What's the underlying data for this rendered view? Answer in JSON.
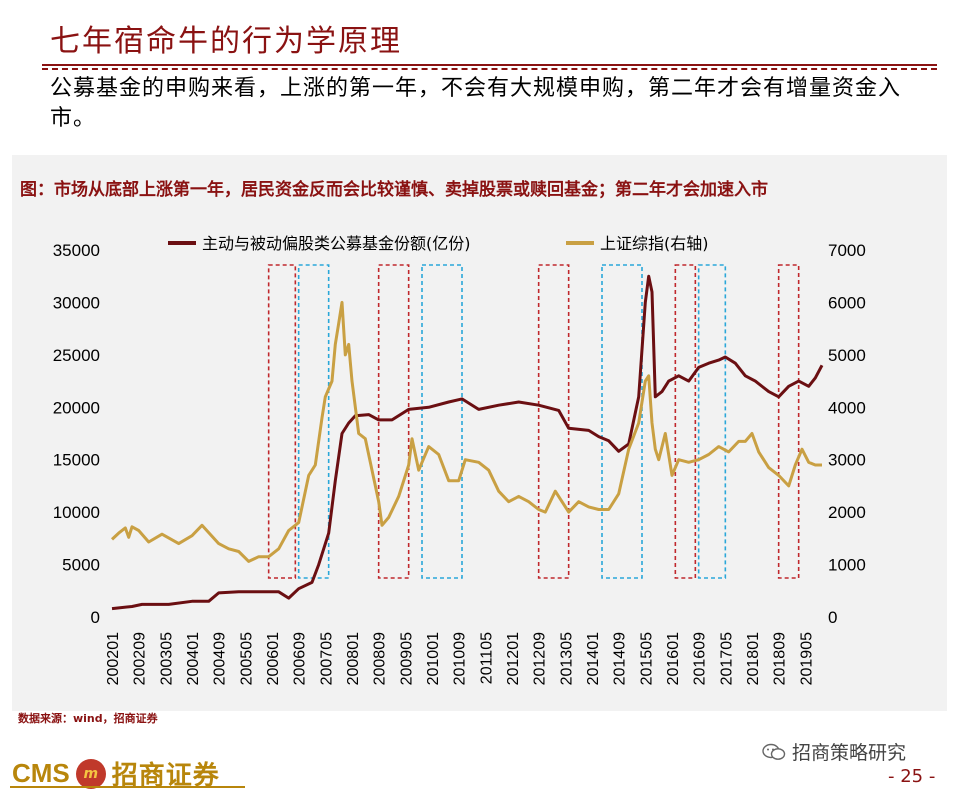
{
  "header": {
    "title": "七年宿命牛的行为学原理",
    "subtitle": "公募基金的申购来看，上涨的第一年，不会有大规模申购，第二年才会有增量资金入市。"
  },
  "chart_data": {
    "type": "line",
    "title": "图：市场从底部上涨第一年，居民资金反而会比较谨慎、卖掉股票或赎回基金；第二年才会加速入市",
    "legend_placement": "top",
    "grid": false,
    "x_tick_labels": [
      "200201",
      "200209",
      "200305",
      "200401",
      "200409",
      "200505",
      "200601",
      "200609",
      "200705",
      "200801",
      "200809",
      "200905",
      "201001",
      "201009",
      "201105",
      "201201",
      "201209",
      "201305",
      "201401",
      "201409",
      "201505",
      "201601",
      "201609",
      "201705",
      "201801",
      "201809",
      "201905"
    ],
    "x_range": [
      "2002-01",
      "2019-10"
    ],
    "y_left": {
      "ticks": [
        "0",
        "5000",
        "10000",
        "15000",
        "20000",
        "25000",
        "30000",
        "35000"
      ],
      "ylim": [
        0,
        35000
      ]
    },
    "y_right": {
      "ticks": [
        "0",
        "1000",
        "2000",
        "3000",
        "4000",
        "5000",
        "6000",
        "7000"
      ],
      "ylim": [
        0,
        7000
      ]
    },
    "series": [
      {
        "name": "主动与被动偏股类公募基金份额(亿份)",
        "axis": "left",
        "color": "#6b0f12",
        "points": [
          [
            "2002-01",
            800
          ],
          [
            "2002-07",
            1000
          ],
          [
            "2002-10",
            1200
          ],
          [
            "2003-06",
            1200
          ],
          [
            "2004-01",
            1500
          ],
          [
            "2004-06",
            1500
          ],
          [
            "2004-09",
            2300
          ],
          [
            "2005-03",
            2400
          ],
          [
            "2005-09",
            2400
          ],
          [
            "2006-03",
            2400
          ],
          [
            "2006-06",
            1800
          ],
          [
            "2006-09",
            2700
          ],
          [
            "2007-01",
            3300
          ],
          [
            "2007-03",
            5000
          ],
          [
            "2007-06",
            8000
          ],
          [
            "2007-08",
            13000
          ],
          [
            "2007-10",
            17500
          ],
          [
            "2007-12",
            18500
          ],
          [
            "2008-02",
            19200
          ],
          [
            "2008-06",
            19300
          ],
          [
            "2008-09",
            18800
          ],
          [
            "2009-01",
            18800
          ],
          [
            "2009-06",
            19800
          ],
          [
            "2009-12",
            20000
          ],
          [
            "2010-06",
            20500
          ],
          [
            "2010-10",
            20800
          ],
          [
            "2011-03",
            19800
          ],
          [
            "2011-09",
            20200
          ],
          [
            "2012-03",
            20500
          ],
          [
            "2012-09",
            20200
          ],
          [
            "2013-03",
            19700
          ],
          [
            "2013-06",
            18000
          ],
          [
            "2013-12",
            17800
          ],
          [
            "2014-03",
            17200
          ],
          [
            "2014-06",
            16800
          ],
          [
            "2014-09",
            15800
          ],
          [
            "2014-12",
            16500
          ],
          [
            "2015-03",
            21000
          ],
          [
            "2015-05",
            30000
          ],
          [
            "2015-06",
            32500
          ],
          [
            "2015-07",
            31000
          ],
          [
            "2015-08",
            21000
          ],
          [
            "2015-10",
            21500
          ],
          [
            "2015-12",
            22500
          ],
          [
            "2016-03",
            23000
          ],
          [
            "2016-06",
            22500
          ],
          [
            "2016-09",
            23800
          ],
          [
            "2016-12",
            24200
          ],
          [
            "2017-03",
            24500
          ],
          [
            "2017-05",
            24800
          ],
          [
            "2017-08",
            24200
          ],
          [
            "2017-11",
            23000
          ],
          [
            "2018-02",
            22500
          ],
          [
            "2018-06",
            21500
          ],
          [
            "2018-09",
            21000
          ],
          [
            "2018-12",
            22000
          ],
          [
            "2019-03",
            22500
          ],
          [
            "2019-06",
            22000
          ],
          [
            "2019-08",
            22800
          ],
          [
            "2019-10",
            24000
          ]
        ]
      },
      {
        "name": "上证综指(右轴)",
        "axis": "right",
        "color": "#c9a043",
        "points": [
          [
            "2002-01",
            1480
          ],
          [
            "2002-03",
            1600
          ],
          [
            "2002-05",
            1700
          ],
          [
            "2002-06",
            1520
          ],
          [
            "2002-07",
            1720
          ],
          [
            "2002-09",
            1650
          ],
          [
            "2002-12",
            1430
          ],
          [
            "2003-04",
            1580
          ],
          [
            "2003-09",
            1400
          ],
          [
            "2004-01",
            1550
          ],
          [
            "2004-04",
            1750
          ],
          [
            "2004-09",
            1400
          ],
          [
            "2004-12",
            1300
          ],
          [
            "2005-03",
            1250
          ],
          [
            "2005-06",
            1060
          ],
          [
            "2005-09",
            1150
          ],
          [
            "2005-12",
            1150
          ],
          [
            "2006-03",
            1300
          ],
          [
            "2006-06",
            1650
          ],
          [
            "2006-09",
            1800
          ],
          [
            "2006-12",
            2700
          ],
          [
            "2007-02",
            2900
          ],
          [
            "2007-04",
            3800
          ],
          [
            "2007-05",
            4200
          ],
          [
            "2007-07",
            4500
          ],
          [
            "2007-08",
            5200
          ],
          [
            "2007-09",
            5600
          ],
          [
            "2007-10",
            6000
          ],
          [
            "2007-11",
            5000
          ],
          [
            "2007-12",
            5200
          ],
          [
            "2008-01",
            4500
          ],
          [
            "2008-03",
            3500
          ],
          [
            "2008-05",
            3400
          ],
          [
            "2008-07",
            2800
          ],
          [
            "2008-09",
            2200
          ],
          [
            "2008-10",
            1750
          ],
          [
            "2008-12",
            1900
          ],
          [
            "2009-03",
            2300
          ],
          [
            "2009-06",
            2900
          ],
          [
            "2009-07",
            3400
          ],
          [
            "2009-09",
            2800
          ],
          [
            "2009-12",
            3250
          ],
          [
            "2010-03",
            3100
          ],
          [
            "2010-06",
            2600
          ],
          [
            "2010-09",
            2600
          ],
          [
            "2010-11",
            3000
          ],
          [
            "2011-03",
            2950
          ],
          [
            "2011-06",
            2800
          ],
          [
            "2011-09",
            2400
          ],
          [
            "2011-12",
            2200
          ],
          [
            "2012-03",
            2300
          ],
          [
            "2012-06",
            2200
          ],
          [
            "2012-09",
            2050
          ],
          [
            "2012-11",
            2000
          ],
          [
            "2013-02",
            2400
          ],
          [
            "2013-06",
            2000
          ],
          [
            "2013-09",
            2200
          ],
          [
            "2013-12",
            2100
          ],
          [
            "2014-03",
            2050
          ],
          [
            "2014-06",
            2050
          ],
          [
            "2014-09",
            2350
          ],
          [
            "2014-12",
            3200
          ],
          [
            "2015-03",
            3700
          ],
          [
            "2015-05",
            4500
          ],
          [
            "2015-06",
            4600
          ],
          [
            "2015-07",
            3700
          ],
          [
            "2015-08",
            3200
          ],
          [
            "2015-09",
            3000
          ],
          [
            "2015-11",
            3500
          ],
          [
            "2016-01",
            2700
          ],
          [
            "2016-03",
            3000
          ],
          [
            "2016-06",
            2950
          ],
          [
            "2016-09",
            3000
          ],
          [
            "2016-12",
            3100
          ],
          [
            "2017-03",
            3250
          ],
          [
            "2017-06",
            3150
          ],
          [
            "2017-09",
            3350
          ],
          [
            "2017-11",
            3350
          ],
          [
            "2018-01",
            3500
          ],
          [
            "2018-03",
            3150
          ],
          [
            "2018-06",
            2850
          ],
          [
            "2018-09",
            2700
          ],
          [
            "2018-12",
            2500
          ],
          [
            "2019-02",
            2900
          ],
          [
            "2019-04",
            3200
          ],
          [
            "2019-06",
            2950
          ],
          [
            "2019-08",
            2900
          ],
          [
            "2019-10",
            2900
          ]
        ]
      }
    ],
    "highlight_periods": [
      {
        "color": "#c0282d",
        "from": "2005-12",
        "to": "2006-08"
      },
      {
        "color": "#2aa7d9",
        "from": "2006-09",
        "to": "2007-06"
      },
      {
        "color": "#c0282d",
        "from": "2008-09",
        "to": "2009-06"
      },
      {
        "color": "#2aa7d9",
        "from": "2009-10",
        "to": "2010-10"
      },
      {
        "color": "#c0282d",
        "from": "2012-09",
        "to": "2013-06"
      },
      {
        "color": "#2aa7d9",
        "from": "2014-04",
        "to": "2015-04"
      },
      {
        "color": "#c0282d",
        "from": "2016-02",
        "to": "2016-08"
      },
      {
        "color": "#2aa7d9",
        "from": "2016-09",
        "to": "2017-05"
      },
      {
        "color": "#c0282d",
        "from": "2018-09",
        "to": "2019-03"
      }
    ]
  },
  "footer": {
    "source": "数据来源：wind，招商证券",
    "brand_prefix": "CMS",
    "brand_coin": "m",
    "brand_name": "招商证券",
    "wechat_label": "招商策略研究",
    "page": "- 25 -"
  }
}
